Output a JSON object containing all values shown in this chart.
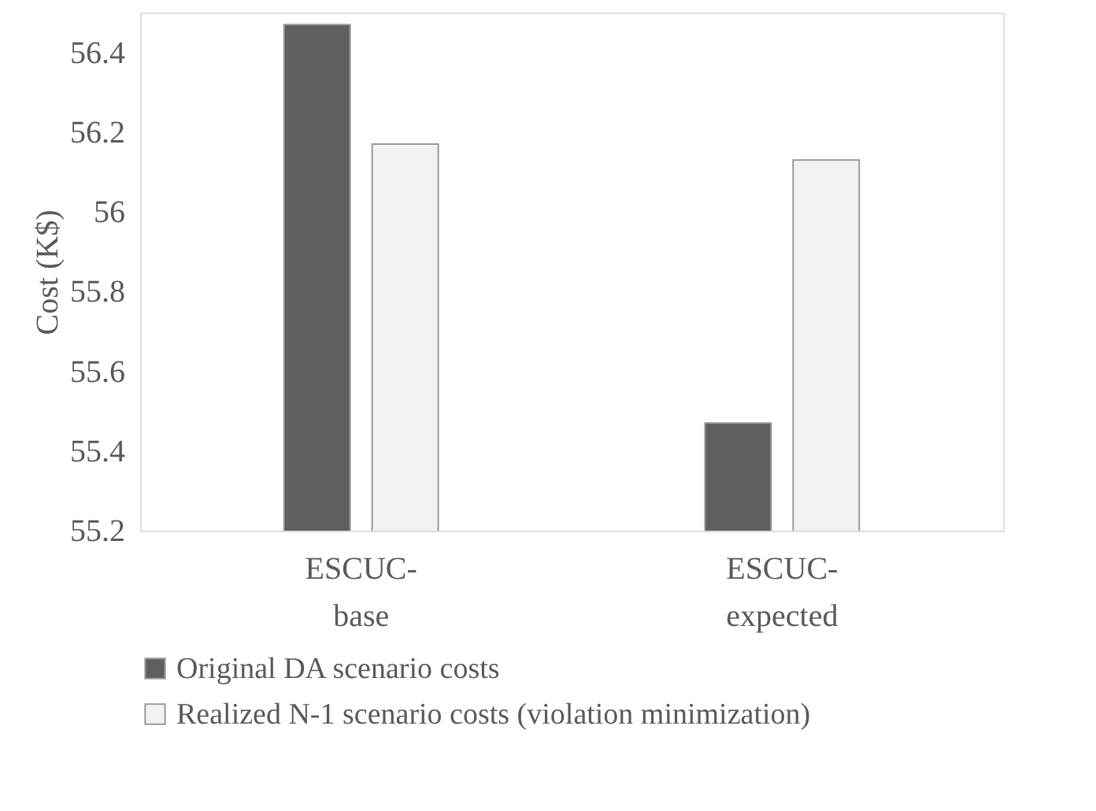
{
  "chart_data": {
    "type": "bar",
    "ylabel": "Cost (K$)",
    "categories": [
      "ESCUC-base",
      "ESCUC-expected"
    ],
    "series": [
      {
        "name": "Original DA scenario costs",
        "color": "#5f5f5f",
        "values": [
          56.47,
          55.47
        ]
      },
      {
        "name": "Realized N-1 scenario costs (violation minimization)",
        "color": "#f2f2f2",
        "values": [
          56.17,
          56.13
        ]
      }
    ],
    "ylim": [
      55.2,
      56.5
    ],
    "yticks": [
      55.2,
      55.4,
      55.6,
      55.8,
      {
        "value": 56,
        "label": "56"
      },
      56.2,
      56.4
    ],
    "grid": false,
    "legend": "bottom"
  }
}
